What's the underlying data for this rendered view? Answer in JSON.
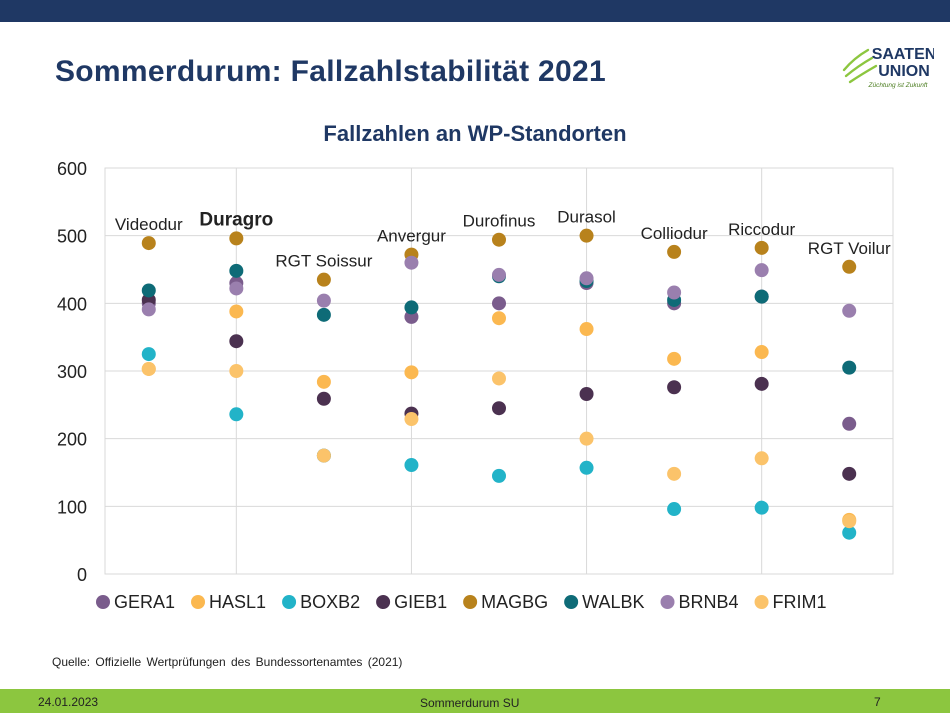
{
  "slide": {
    "title": "Sommerdurum: Fallzahlstabilität 2021",
    "logo": {
      "line1": "SAATEN",
      "line2": "UNION",
      "tagline": "Züchtung ist Zukunft"
    },
    "source": "Quelle: Offizielle Wertprüfungen des Bundessortenamtes (2021)",
    "footer": {
      "date": "24.01.2023",
      "center": "Sommerdurum SU",
      "page": "7"
    }
  },
  "colors": {
    "title": "#1f3864",
    "top_bar": "#1f3864",
    "footer_bar": "#8cc63f",
    "grid": "#d9d9d9"
  },
  "chart_data": {
    "type": "scatter",
    "title": "Fallzahlen an WP-Standorten",
    "categories": [
      "Videodur",
      "Duragro",
      "RGT Soissur",
      "Anvergur",
      "Durofinus",
      "Durasol",
      "Colliodur",
      "Riccodur",
      "RGT Voilur"
    ],
    "highlight_category": "Duragro",
    "ylim": [
      0,
      600
    ],
    "yticks": [
      0,
      100,
      200,
      300,
      400,
      500,
      600
    ],
    "grid": true,
    "legend_position": "bottom",
    "series": [
      {
        "name": "GERA1",
        "color": "#7a5c8c",
        "values": [
          400,
          430,
          175,
          380,
          400,
          430,
          400,
          410,
          222
        ]
      },
      {
        "name": "HASL1",
        "color": "#fbb850",
        "values": [
          303,
          388,
          284,
          298,
          378,
          362,
          318,
          328,
          80
        ]
      },
      {
        "name": "BOXB2",
        "color": "#22b3c8",
        "values": [
          325,
          236,
          175,
          161,
          145,
          157,
          96,
          98,
          61
        ]
      },
      {
        "name": "GIEB1",
        "color": "#4b3150",
        "values": [
          405,
          344,
          259,
          237,
          245,
          266,
          276,
          281,
          148
        ]
      },
      {
        "name": "MAGBG",
        "color": "#b8821c",
        "values": [
          489,
          496,
          435,
          472,
          494,
          500,
          476,
          482,
          454
        ]
      },
      {
        "name": "WALBK",
        "color": "#0e6b77",
        "values": [
          419,
          448,
          383,
          394,
          440,
          433,
          405,
          410,
          305
        ]
      },
      {
        "name": "BRNB4",
        "color": "#9a7fae",
        "values": [
          391,
          422,
          404,
          460,
          442,
          437,
          416,
          449,
          389
        ]
      },
      {
        "name": "FRIM1",
        "color": "#fbc36a",
        "values": [
          303,
          300,
          175,
          229,
          289,
          200,
          148,
          171,
          78
        ]
      }
    ]
  }
}
